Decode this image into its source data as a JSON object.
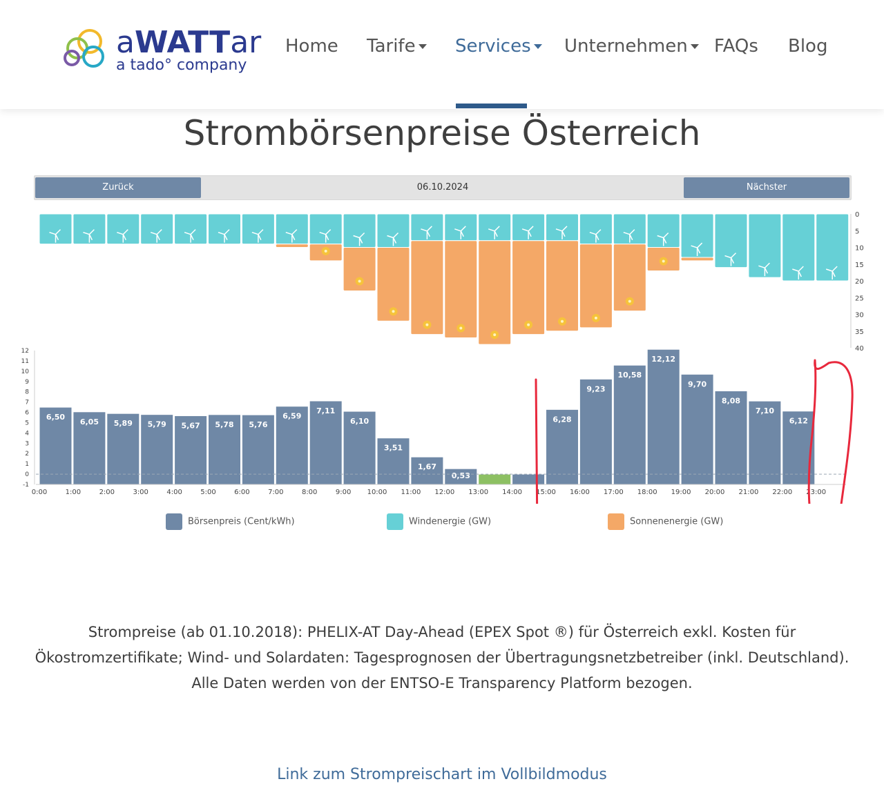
{
  "brand": {
    "name_prefix": "a",
    "name_bold": "WATT",
    "name_suffix": "ar",
    "tagline": "a tado° company"
  },
  "nav": {
    "items": [
      {
        "label": "Home",
        "dropdown": false
      },
      {
        "label": "Tarife",
        "dropdown": true
      },
      {
        "label": "Services",
        "dropdown": true,
        "active": true
      },
      {
        "label": "Unternehmen",
        "dropdown": true
      },
      {
        "label": "FAQs",
        "dropdown": false
      },
      {
        "label": "Blog",
        "dropdown": false
      }
    ]
  },
  "page": {
    "title": "Strombörsenpreise Österreich"
  },
  "datebar": {
    "prev_label": "Zurück",
    "date": "06.10.2024",
    "next_label": "Nächster"
  },
  "legend": [
    {
      "label": "Börsenpreis (Cent/kWh)",
      "color": "#6f88a6"
    },
    {
      "label": "Windenergie (GW)",
      "color": "#66d0d6"
    },
    {
      "label": "Sonnenenergie (GW)",
      "color": "#f4a867"
    }
  ],
  "chart_data": [
    {
      "type": "bar",
      "categories": [
        "0:00",
        "1:00",
        "2:00",
        "3:00",
        "4:00",
        "5:00",
        "6:00",
        "7:00",
        "8:00",
        "9:00",
        "10:00",
        "11:00",
        "12:00",
        "13:00",
        "14:00",
        "15:00",
        "16:00",
        "17:00",
        "18:00",
        "19:00",
        "20:00",
        "21:00",
        "22:00",
        "23:00"
      ],
      "series": [
        {
          "name": "Windenergie (GW)",
          "values": [
            9,
            9,
            9,
            9,
            9,
            9,
            9,
            9,
            9,
            10,
            10,
            8,
            8,
            8,
            8,
            8,
            9,
            9,
            10,
            13,
            16,
            19,
            20,
            20
          ]
        },
        {
          "name": "Sonnenenergie (GW)",
          "values": [
            0,
            0,
            0,
            0,
            0,
            0,
            0,
            1,
            5,
            13,
            22,
            28,
            29,
            31,
            28,
            27,
            25,
            20,
            7,
            1,
            0,
            0,
            0,
            0
          ]
        }
      ],
      "y_ticks": [
        "0",
        "5",
        "10",
        "15",
        "20",
        "25",
        "30",
        "35",
        "40"
      ],
      "ylim": [
        0,
        40
      ],
      "reversed": true
    },
    {
      "type": "bar",
      "categories": [
        "0:00",
        "1:00",
        "2:00",
        "3:00",
        "4:00",
        "5:00",
        "6:00",
        "7:00",
        "8:00",
        "9:00",
        "10:00",
        "11:00",
        "12:00",
        "13:00",
        "14:00",
        "15:00",
        "16:00",
        "17:00",
        "18:00",
        "19:00",
        "20:00",
        "21:00",
        "22:00",
        "23:00"
      ],
      "x_ticks": [
        "0:00",
        "1:00",
        "2:00",
        "3:00",
        "4:00",
        "5:00",
        "6:00",
        "7:00",
        "8:00",
        "9:00",
        "10:00",
        "11:00",
        "12:00",
        "13:00",
        "14:00",
        "15:00",
        "16:00",
        "17:00",
        "18:00",
        "19:00",
        "20:00",
        "21:00",
        "22:00",
        "23:00"
      ],
      "series": [
        {
          "name": "Börsenpreis (Cent/kWh)",
          "values": [
            6.5,
            6.05,
            5.89,
            5.79,
            5.67,
            5.78,
            5.76,
            6.59,
            7.11,
            6.1,
            3.51,
            1.67,
            0.53,
            -0.01,
            -0.01,
            6.28,
            9.23,
            10.58,
            12.12,
            9.7,
            8.08,
            7.1,
            6.12,
            null
          ]
        }
      ],
      "labels": [
        "6,50",
        "6,05",
        "5,89",
        "5,79",
        "5,67",
        "5,78",
        "5,76",
        "6,59",
        "7,11",
        "6,10",
        "3,51",
        "1,67",
        "0,53",
        "",
        "",
        "6,28",
        "9,23",
        "10,58",
        "12,12",
        "9,70",
        "8,08",
        "7,10",
        "6,12",
        ""
      ],
      "y_ticks": [
        "-1",
        "0",
        "1",
        "2",
        "3",
        "4",
        "5",
        "6",
        "7",
        "8",
        "9",
        "10",
        "11",
        "12"
      ],
      "ylim": [
        -1,
        12
      ],
      "colors": {
        "price": "#6f88a6",
        "negative": "#8dc063"
      }
    }
  ],
  "link_text": "Link zum Strompreischart im Vollbildmodus",
  "description": "Strompreise (ab 01.10.2018): PHELIX-AT Day-Ahead (EPEX Spot ®) für Österreich exkl. Kosten für Ökostromzertifikate; Wind- und Solardaten: Tagesprognosen der Übertragungsnetzbetreiber (inkl. Deutschland). Alle Daten werden von der ENTSO-E Transparency Platform bezogen."
}
